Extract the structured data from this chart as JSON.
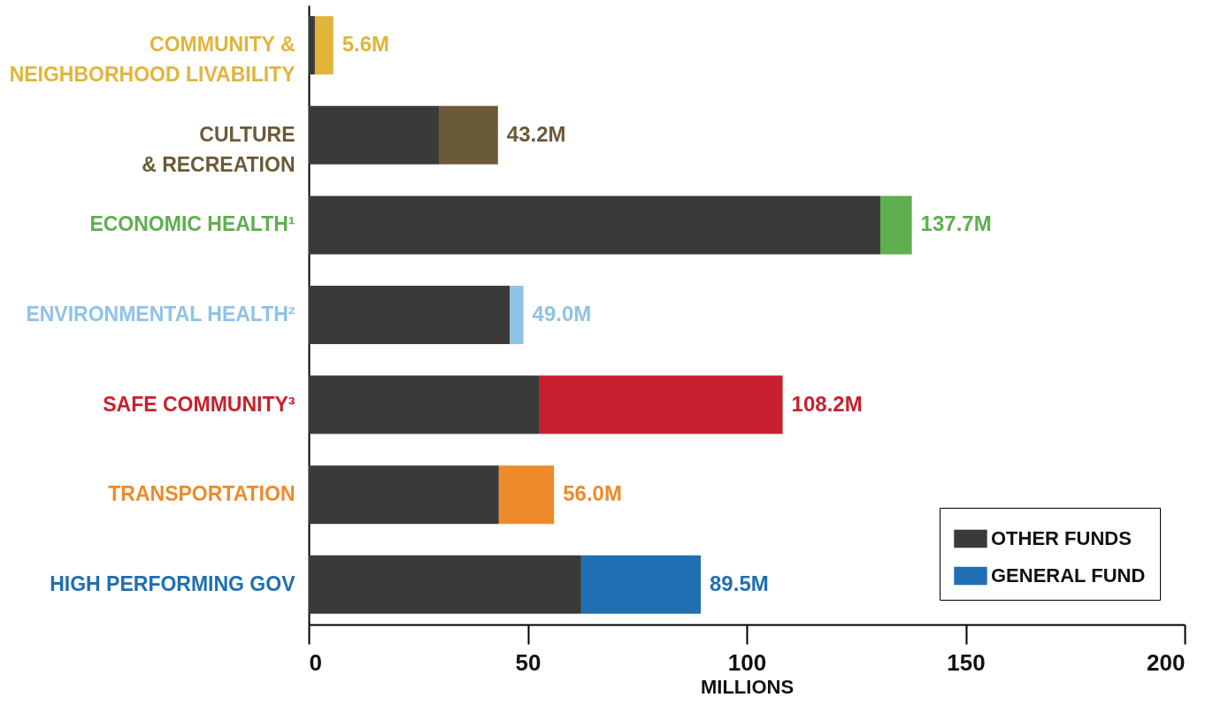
{
  "chart_data": {
    "type": "bar",
    "orientation": "horizontal",
    "stacked": true,
    "categories": [
      "COMMUNITY &\nNEIGHBORHOOD LIVABILITY",
      "CULTURE\n& RECREATION",
      "ECONOMIC HEALTH¹",
      "ENVIRONMENTAL HEALTH²",
      "SAFE COMMUNITY³",
      "TRANSPORTATION",
      "HIGH PERFORMING GOV"
    ],
    "series": [
      {
        "name": "OTHER FUNDS",
        "color": "#3a3a3a",
        "values": [
          1.4,
          29.7,
          130.5,
          45.9,
          52.7,
          43.4,
          62.2
        ]
      },
      {
        "name": "GENERAL FUND",
        "colors": [
          "#e0b53a",
          "#6b5a38",
          "#5fae50",
          "#8fc3e6",
          "#c8202f",
          "#ef8a2a",
          "#1f6fb2"
        ],
        "values": [
          4.2,
          13.5,
          7.2,
          3.1,
          55.5,
          12.6,
          27.3
        ]
      }
    ],
    "totals": [
      "5.6M",
      "43.2M",
      "137.7M",
      "49.0M",
      "108.2M",
      "56.0M",
      "89.5M"
    ],
    "xlabel": "MILLIONS",
    "xlim": [
      0,
      200
    ],
    "xticks": [
      0,
      50,
      100,
      150,
      200
    ],
    "grid": false,
    "legend": "bottom right"
  }
}
